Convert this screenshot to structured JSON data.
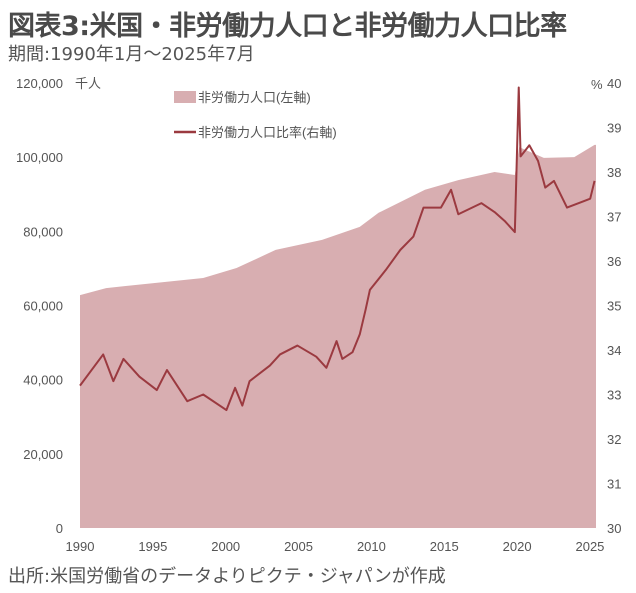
{
  "title": "図表3:米国・非労働力人口と非労働力人口比率",
  "subtitle": "期間:1990年1月～2025年7月",
  "source": "出所:米国労働省のデータよりピクテ・ジャパンが作成",
  "colors": {
    "area": "#d8aeb1",
    "line": "#9b3a40"
  },
  "chart_data": {
    "type": "area+line",
    "left_axis": {
      "unit": "千人",
      "ylim": [
        0,
        120000
      ],
      "ticks": [
        "0",
        "20,000",
        "40,000",
        "60,000",
        "80,000",
        "100,000",
        "120,000"
      ]
    },
    "right_axis": {
      "unit": "%",
      "ylim": [
        30,
        40
      ],
      "ticks": [
        "30",
        "31",
        "32",
        "33",
        "34",
        "35",
        "36",
        "37",
        "38",
        "39",
        "40"
      ]
    },
    "x_ticks": [
      "1990",
      "1995",
      "2000",
      "2005",
      "2010",
      "2015",
      "2020",
      "2025"
    ],
    "xlim": [
      1990,
      2025.6
    ],
    "legend": {
      "placement": "top-center",
      "area_label": "非労働力人口(左軸)",
      "line_label": "非労働力人口比率(右軸)"
    },
    "series": [
      {
        "name": "非労働力人口(左軸)",
        "axis": "left",
        "type": "area",
        "x": [
          1990,
          1991.8,
          1995,
          1998.5,
          2000.8,
          2003.5,
          2006.7,
          2009.3,
          2010.6,
          2013.8,
          2016.1,
          2018.6,
          2020.0,
          2020.3,
          2022.0,
          2024.1,
          2025.5
        ],
        "y": [
          62800,
          64700,
          66000,
          67400,
          70100,
          75000,
          77700,
          81200,
          85000,
          91200,
          93800,
          96000,
          95200,
          102700,
          99800,
          100000,
          103300
        ]
      },
      {
        "name": "非労働力人口比率(右軸)",
        "axis": "right",
        "type": "line",
        "x": [
          1990,
          1991.6,
          1992.3,
          1993,
          1994.1,
          1995.3,
          1996,
          1997.4,
          1998.5,
          2000.1,
          2000.7,
          2001.2,
          2001.7,
          2003.1,
          2003.8,
          2005,
          2006.3,
          2007,
          2007.7,
          2008.1,
          2008.8,
          2009.3,
          2009.7,
          2010,
          2011.1,
          2012.1,
          2013,
          2013.7,
          2014.9,
          2015.6,
          2016.1,
          2017.7,
          2018.6,
          2019.3,
          2020.0,
          2020.27,
          2020.4,
          2021.0,
          2021.6,
          2022.1,
          2022.7,
          2023.6,
          2024.8,
          2025.2,
          2025.5
        ],
        "y": [
          33.2,
          33.9,
          33.3,
          33.8,
          33.4,
          33.1,
          33.55,
          32.85,
          33.0,
          32.65,
          33.15,
          32.75,
          33.3,
          33.65,
          33.9,
          34.1,
          33.85,
          33.6,
          34.2,
          33.8,
          33.95,
          34.35,
          34.9,
          35.35,
          35.8,
          36.25,
          36.55,
          37.2,
          37.2,
          37.6,
          37.05,
          37.3,
          37.1,
          36.9,
          36.65,
          39.9,
          38.35,
          38.6,
          38.25,
          37.65,
          37.8,
          37.2,
          37.35,
          37.4,
          37.8
        ]
      }
    ]
  }
}
